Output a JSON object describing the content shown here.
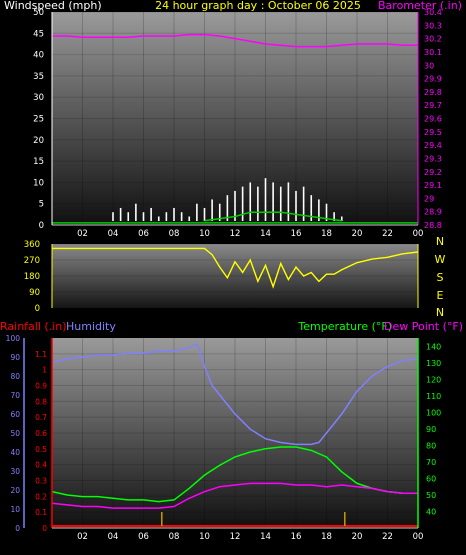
{
  "colors": {
    "wind": "#ffffff",
    "gust": "#ffffff",
    "wind_avg": "#00cc00",
    "barometer": "#ff00ff",
    "direction": "#ffff00",
    "rain": "#ff0000",
    "humidity": "#8080ff",
    "temperature": "#00ff00",
    "dewpoint": "#ff00ff",
    "rain_bars": "#cc9900",
    "axis_text": "#ffffff"
  },
  "chart_data": [
    {
      "type": "line",
      "panel": "wind-barometer",
      "title": "24 hour graph day : October 06 2025",
      "left_axis_title": "Windspeed (mph)",
      "right_axis_title": "Barometer (.in)",
      "y_left_ticks": [
        "50",
        "45",
        "40",
        "35",
        "30",
        "25",
        "20",
        "15",
        "10",
        "5",
        "0"
      ],
      "y_left_range": [
        0,
        50
      ],
      "y_right_ticks": [
        "30.4",
        "30.3",
        "30.2",
        "30.1",
        "30",
        "29.9",
        "29.8",
        "29.7",
        "29.6",
        "29.5",
        "29.4",
        "29.3",
        "29.2",
        "29.1",
        "29",
        "28.9",
        "28.8"
      ],
      "y_right_range": [
        28.8,
        30.4
      ],
      "x_ticks": [
        "02",
        "04",
        "06",
        "08",
        "10",
        "12",
        "14",
        "16",
        "18",
        "20",
        "22",
        "00"
      ],
      "x_range": [
        0,
        24
      ],
      "series": [
        {
          "role": "barometer",
          "axis": "right",
          "x": [
            0,
            1,
            2,
            3,
            4,
            5,
            6,
            7,
            8,
            9,
            10,
            11,
            12,
            13,
            14,
            15,
            16,
            17,
            18,
            19,
            20,
            21,
            22,
            23,
            24
          ],
          "values": [
            30.22,
            30.22,
            30.21,
            30.21,
            30.21,
            30.21,
            30.22,
            30.22,
            30.22,
            30.23,
            30.23,
            30.22,
            30.2,
            30.18,
            30.16,
            30.15,
            30.14,
            30.14,
            30.14,
            30.15,
            30.16,
            30.16,
            30.16,
            30.15,
            30.15
          ]
        },
        {
          "role": "wind-gust",
          "axis": "left",
          "x": [
            4,
            4.5,
            5,
            5.5,
            6,
            6.5,
            7,
            7.5,
            8,
            8.5,
            9,
            9.5,
            10,
            10.5,
            11,
            11.5,
            12,
            12.5,
            13,
            13.5,
            14,
            14.5,
            15,
            15.5,
            16,
            16.5,
            17,
            17.5,
            18,
            18.5,
            19
          ],
          "values": [
            3,
            4,
            3,
            5,
            3,
            4,
            2,
            3,
            4,
            3,
            2,
            5,
            4,
            6,
            5,
            7,
            8,
            9,
            10,
            9,
            11,
            10,
            9,
            10,
            8,
            9,
            7,
            6,
            5,
            3,
            2
          ]
        },
        {
          "role": "wind-average",
          "axis": "left",
          "x": [
            10,
            11,
            12,
            13,
            14,
            15,
            16,
            17,
            18,
            19
          ],
          "values": [
            1,
            1.5,
            2,
            3,
            3,
            3,
            2.5,
            2,
            1.5,
            1
          ]
        }
      ]
    },
    {
      "type": "line",
      "panel": "wind-direction",
      "y_left_ticks": [
        "360",
        "270",
        "180",
        "90",
        "0"
      ],
      "y_range": [
        0,
        360
      ],
      "compass_labels": [
        "N",
        "W",
        "S",
        "E",
        "N"
      ],
      "x_range": [
        0,
        24
      ],
      "series": [
        {
          "role": "direction",
          "x": [
            0,
            2,
            4,
            6,
            8,
            10,
            10.5,
            11,
            11.5,
            12,
            12.5,
            13,
            13.5,
            14,
            14.5,
            15,
            15.5,
            16,
            16.5,
            17,
            17.5,
            18,
            18.5,
            19,
            20,
            21,
            22,
            23,
            24
          ],
          "values": [
            335,
            335,
            335,
            335,
            335,
            335,
            300,
            230,
            170,
            260,
            200,
            270,
            150,
            240,
            120,
            250,
            160,
            230,
            180,
            200,
            150,
            190,
            190,
            215,
            255,
            275,
            285,
            305,
            315
          ]
        }
      ]
    },
    {
      "type": "line",
      "panel": "temperature-humidity",
      "left_axis_titles": [
        "Rainfall (.in)",
        "Humidity"
      ],
      "right_axis_titles": [
        "Temperature (°F)",
        "Dew Point (°F)"
      ],
      "y_rain_ticks": [
        "1.1",
        "1",
        "0.9",
        "0.8",
        "0.7",
        "0.6",
        "0.5",
        "0.4",
        "0.3",
        "0.2",
        "0.1",
        "0"
      ],
      "y_rain_range": [
        0,
        1.2
      ],
      "y_humidity_ticks": [
        "100",
        "90",
        "80",
        "70",
        "60",
        "50",
        "40",
        "30",
        "20",
        "10",
        "0"
      ],
      "y_humidity_range": [
        0,
        100
      ],
      "y_temp_ticks": [
        "140",
        "130",
        "120",
        "110",
        "100",
        "90",
        "80",
        "70",
        "60",
        "50",
        "40"
      ],
      "y_temp_range": [
        30,
        145
      ],
      "x_ticks": [
        "02",
        "04",
        "06",
        "08",
        "10",
        "12",
        "14",
        "16",
        "18",
        "20",
        "22",
        "00"
      ],
      "x_range": [
        0,
        24
      ],
      "series": [
        {
          "role": "humidity",
          "x": [
            0,
            1,
            2,
            3,
            4,
            5,
            6,
            7,
            8,
            9,
            9.5,
            10,
            10.5,
            11,
            12,
            13,
            14,
            15,
            16,
            17,
            17.5,
            18,
            19,
            20,
            21,
            22,
            23,
            24
          ],
          "values": [
            87,
            89,
            90,
            91,
            91,
            92,
            92,
            93,
            93,
            95,
            97,
            85,
            75,
            70,
            60,
            52,
            47,
            45,
            44,
            44,
            45,
            50,
            60,
            72,
            80,
            85,
            88,
            89
          ]
        },
        {
          "role": "temperature",
          "x": [
            0,
            1,
            2,
            3,
            4,
            5,
            6,
            7,
            8,
            9,
            10,
            11,
            12,
            13,
            14,
            15,
            16,
            17,
            18,
            19,
            20,
            21,
            22,
            23,
            24
          ],
          "values": [
            52,
            50,
            49,
            49,
            48,
            47,
            47,
            46,
            47,
            54,
            62,
            68,
            73,
            76,
            78,
            79,
            79,
            77,
            73,
            64,
            57,
            54,
            52,
            51,
            51
          ]
        },
        {
          "role": "dewpoint",
          "x": [
            0,
            1,
            2,
            3,
            4,
            5,
            6,
            7,
            8,
            9,
            10,
            11,
            12,
            13,
            14,
            15,
            16,
            17,
            18,
            19,
            20,
            21,
            22,
            23,
            24
          ],
          "values": [
            45,
            44,
            43,
            43,
            42,
            42,
            42,
            42,
            43,
            48,
            52,
            55,
            56,
            57,
            57,
            57,
            56,
            56,
            55,
            56,
            55,
            54,
            52,
            51,
            51
          ]
        },
        {
          "role": "rainfall",
          "x": [
            0,
            24
          ],
          "values": [
            0,
            0
          ]
        }
      ],
      "rain_event_marks": [
        7.2,
        19.2
      ]
    }
  ]
}
